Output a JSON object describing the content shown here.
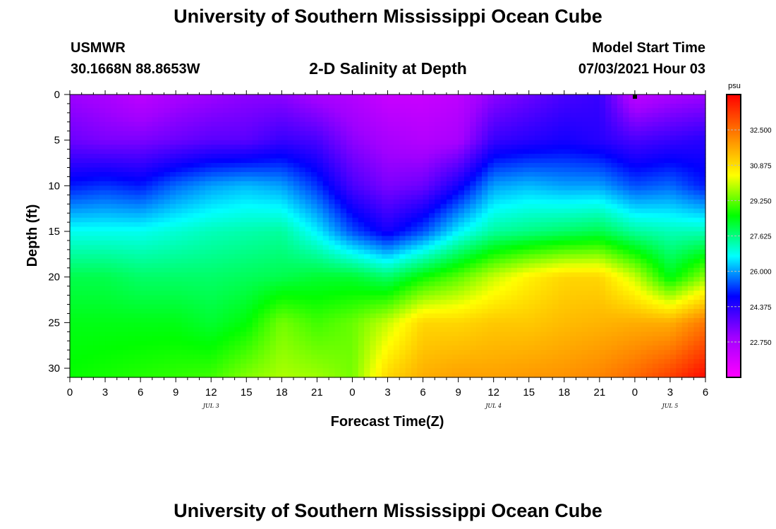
{
  "header": {
    "title": "University of Southern Mississippi Ocean Cube",
    "station": "USMWR",
    "coords": "30.1668N  88.8653W",
    "subtitle": "2-D Salinity at Depth",
    "model_start_label": "Model Start Time",
    "model_start_value": "07/03/2021 Hour 03"
  },
  "footer": {
    "title": "University of Southern Mississippi Ocean Cube"
  },
  "colors": {
    "scale": [
      "#ff00ff",
      "#a000ff",
      "#0000ff",
      "#00ffff",
      "#00ff00",
      "#ffff00",
      "#ff8000",
      "#ff0000"
    ]
  },
  "chart_data": {
    "type": "heatmap",
    "title": "2-D Salinity at Depth",
    "xlabel": "Forecast Time(Z)",
    "ylabel": "Depth (ft)",
    "x_tick_labels": [
      "0",
      "3",
      "6",
      "9",
      "12",
      "15",
      "18",
      "21",
      "0",
      "3",
      "6",
      "9",
      "12",
      "15",
      "18",
      "21",
      "0",
      "3",
      "6"
    ],
    "x_range_hours": [
      0,
      54
    ],
    "date_labels": [
      {
        "text": "JUL 3",
        "hour": 12
      },
      {
        "text": "JUL 4",
        "hour": 36
      },
      {
        "text": "JUL 5",
        "hour": 51
      }
    ],
    "y_ticks": [
      0,
      5,
      10,
      15,
      20,
      25,
      30
    ],
    "y_range_ft": [
      0,
      31
    ],
    "colorbar": {
      "unit": "psu",
      "min": 21.125,
      "max": 34.125,
      "ticks": [
        "32.500",
        "30.875",
        "29.250",
        "27.625",
        "26.000",
        "24.375",
        "22.750"
      ]
    },
    "salinity_profiles_psu": {
      "depths_ft": [
        0,
        5,
        10,
        15,
        20,
        25,
        31
      ],
      "columns": [
        {
          "hour": 0,
          "values": [
            23.0,
            23.6,
            25.0,
            26.8,
            28.0,
            28.4,
            28.6
          ]
        },
        {
          "hour": 3,
          "values": [
            22.8,
            23.4,
            25.2,
            26.8,
            28.0,
            28.4,
            28.7
          ]
        },
        {
          "hour": 6,
          "values": [
            22.4,
            23.4,
            25.0,
            26.8,
            27.8,
            28.4,
            28.8
          ]
        },
        {
          "hour": 9,
          "values": [
            22.8,
            23.6,
            25.6,
            27.0,
            27.8,
            28.4,
            28.9
          ]
        },
        {
          "hour": 12,
          "values": [
            23.0,
            23.8,
            26.0,
            27.2,
            27.8,
            28.2,
            29.0
          ]
        },
        {
          "hour": 15,
          "values": [
            23.2,
            23.8,
            26.2,
            27.3,
            27.9,
            28.5,
            29.5
          ]
        },
        {
          "hour": 18,
          "values": [
            23.2,
            24.2,
            26.0,
            27.4,
            28.0,
            29.4,
            29.8
          ]
        },
        {
          "hour": 21,
          "values": [
            22.8,
            24.0,
            25.2,
            26.6,
            28.2,
            29.0,
            29.7
          ]
        },
        {
          "hour": 24,
          "values": [
            22.6,
            23.2,
            24.0,
            25.4,
            28.2,
            29.3,
            29.4
          ]
        },
        {
          "hour": 27,
          "values": [
            22.2,
            22.8,
            23.4,
            24.6,
            27.8,
            30.0,
            31.0
          ]
        },
        {
          "hour": 30,
          "values": [
            22.2,
            22.6,
            23.6,
            25.4,
            28.6,
            31.0,
            31.6
          ]
        },
        {
          "hour": 33,
          "values": [
            22.4,
            22.8,
            24.6,
            26.6,
            29.2,
            31.0,
            31.8
          ]
        },
        {
          "hour": 36,
          "values": [
            23.2,
            24.2,
            26.0,
            27.4,
            30.0,
            31.2,
            31.8
          ]
        },
        {
          "hour": 39,
          "values": [
            23.6,
            24.4,
            26.2,
            27.6,
            30.6,
            31.2,
            31.9
          ]
        },
        {
          "hour": 42,
          "values": [
            24.0,
            24.6,
            26.0,
            27.8,
            31.0,
            31.4,
            32.0
          ]
        },
        {
          "hour": 45,
          "values": [
            24.2,
            24.4,
            26.0,
            28.0,
            31.0,
            31.5,
            32.2
          ]
        },
        {
          "hour": 48,
          "values": [
            22.4,
            24.0,
            25.4,
            27.4,
            30.0,
            31.6,
            32.6
          ]
        },
        {
          "hour": 51,
          "values": [
            22.8,
            24.2,
            25.6,
            27.2,
            28.4,
            31.6,
            33.2
          ]
        },
        {
          "hour": 54,
          "values": [
            23.0,
            24.4,
            25.0,
            27.2,
            29.6,
            32.4,
            34.0
          ]
        }
      ]
    }
  }
}
